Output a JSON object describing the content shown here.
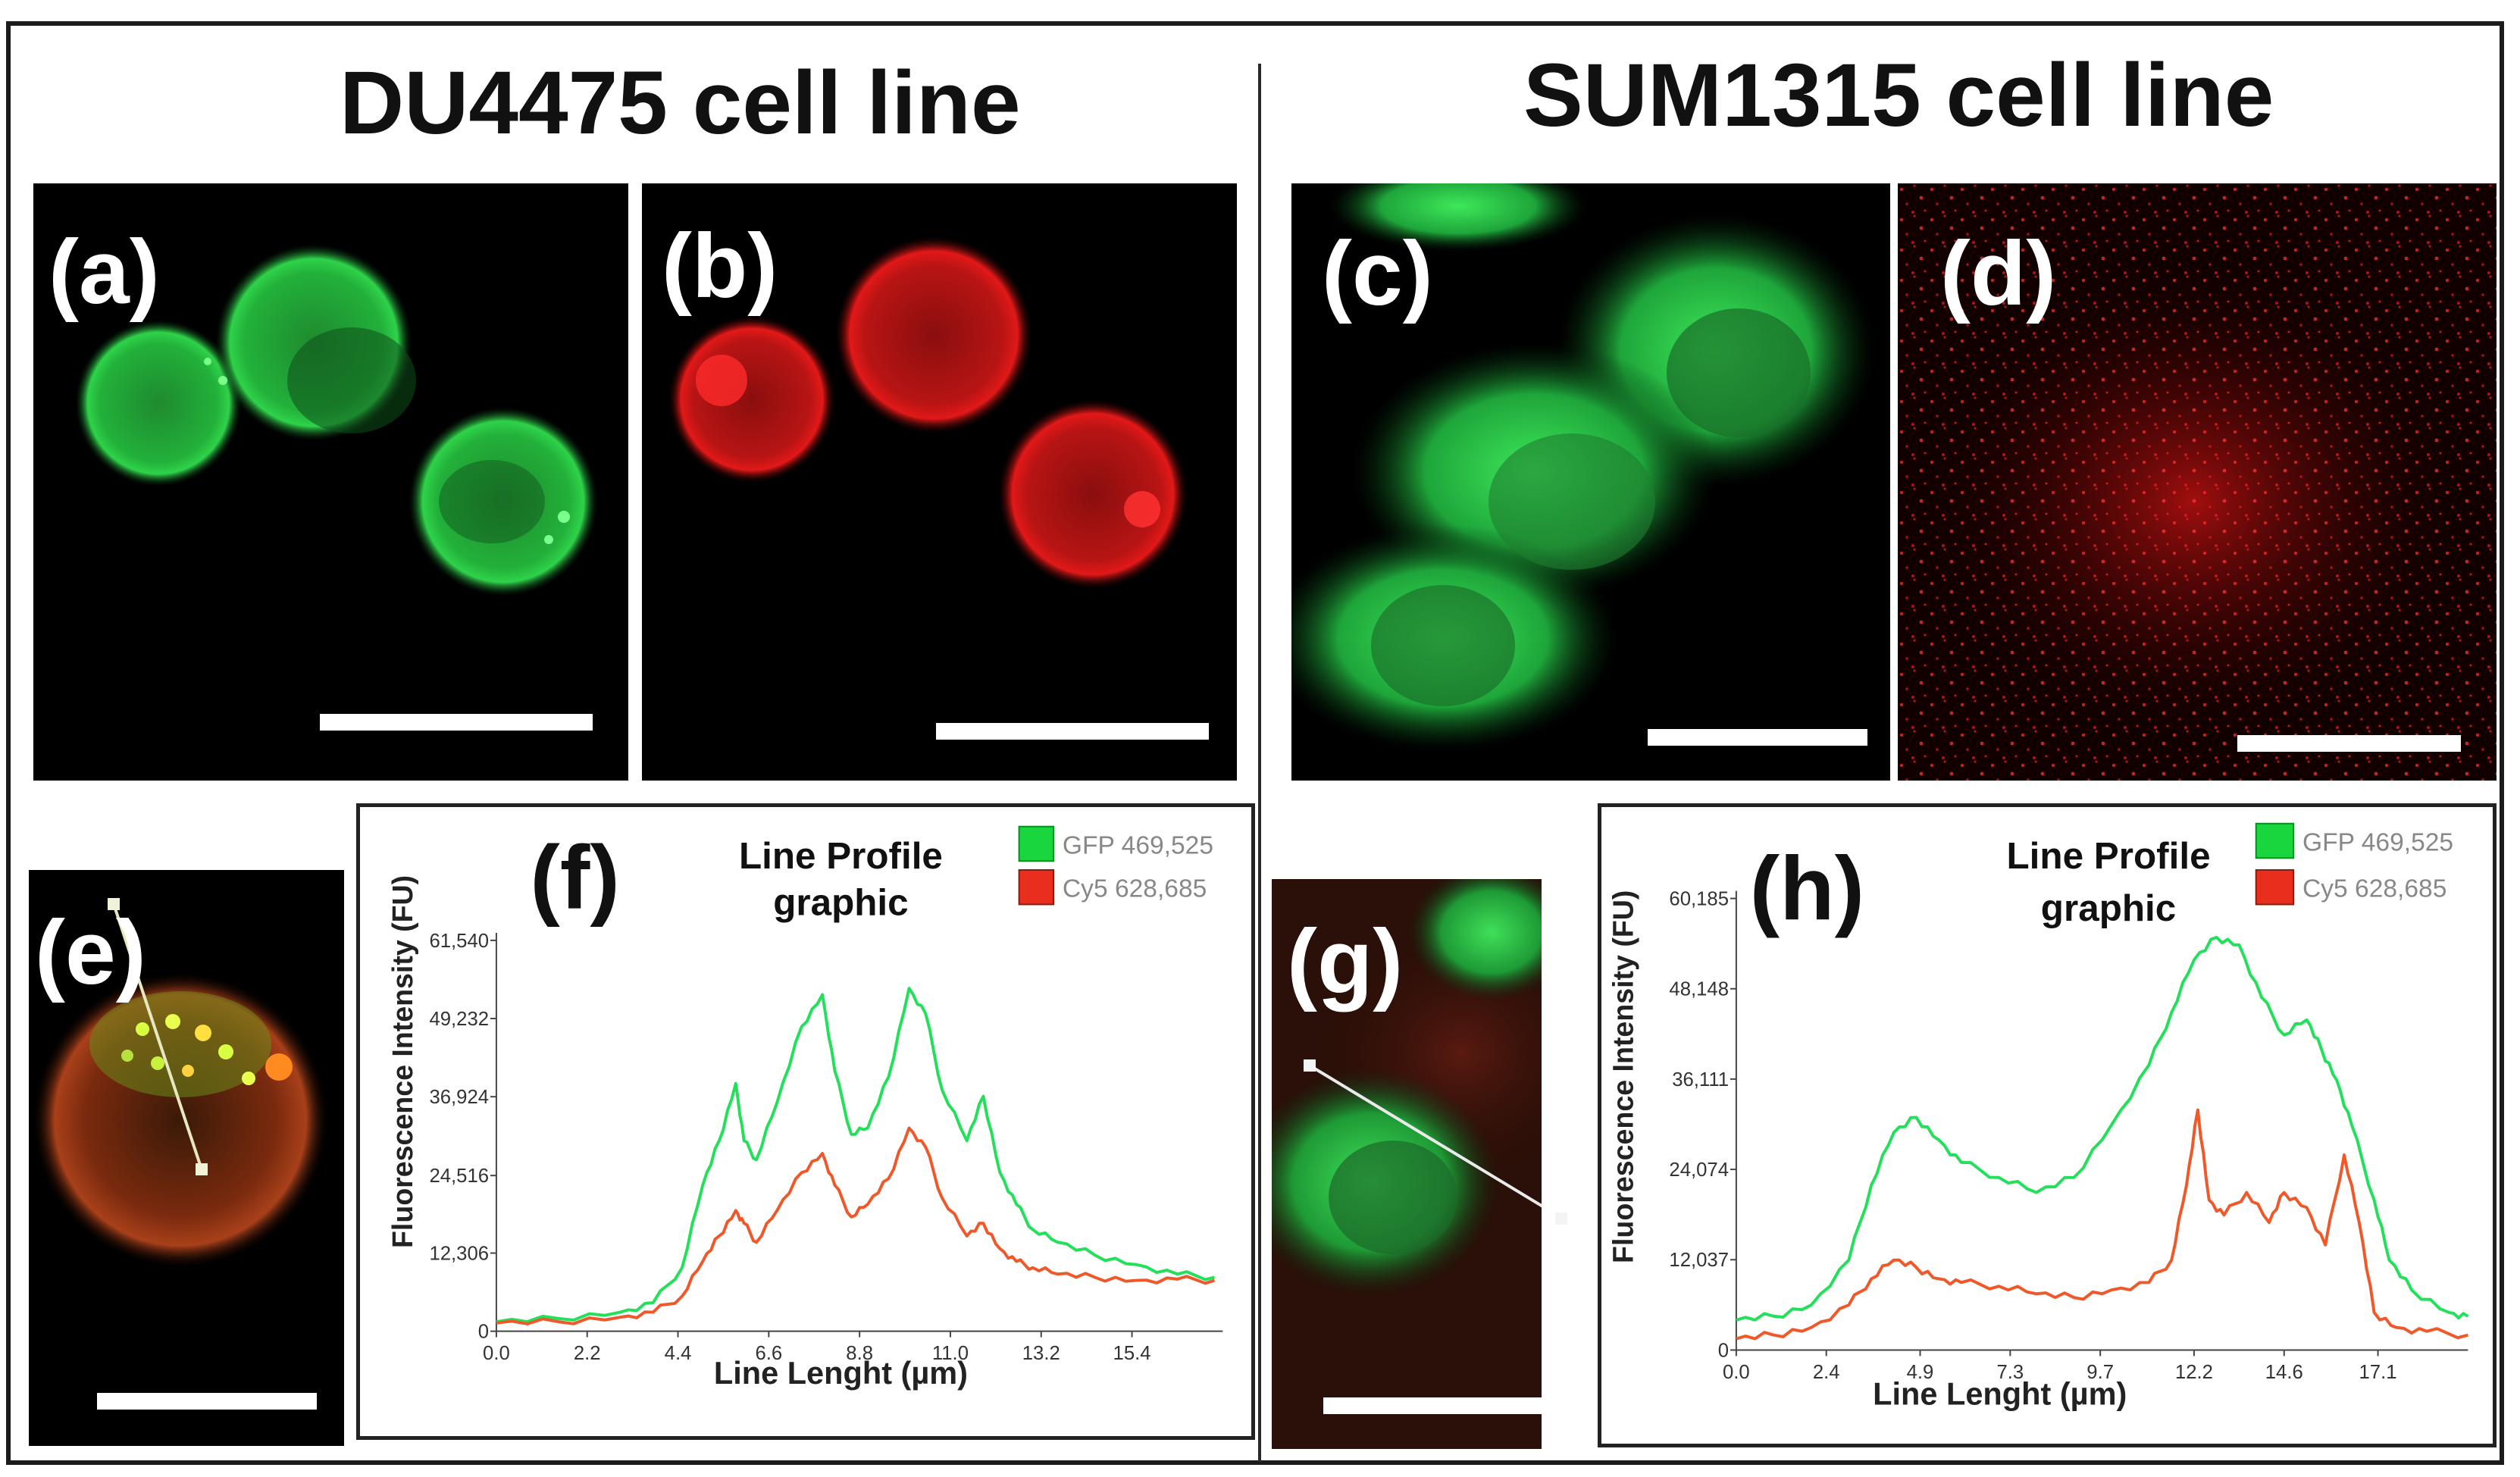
{
  "headings": {
    "left": "DU4475 cell line",
    "right": "SUM1315 cell line"
  },
  "panel_labels": {
    "a": "(a)",
    "b": "(b)",
    "c": "(c)",
    "d": "(d)",
    "e": "(e)",
    "f": "(f)",
    "g": "(g)",
    "h": "(h)"
  },
  "colors": {
    "gfp_line": "#22e05a",
    "cy5_line": "#f0582a",
    "gfp_swatch": "#19d63e",
    "cy5_swatch": "#e92e1e",
    "green_fluor": "#2fd24a",
    "red_fluor": "#e21818"
  },
  "chart_data": [
    {
      "id": "f",
      "type": "line",
      "title": "Line Profile graphic",
      "title_lines": [
        "Line Profile",
        "graphic"
      ],
      "xlabel": "Line Lenght (µm)",
      "ylabel": "Fluorescence Intensity (FU)",
      "xlim": [
        0,
        17.6
      ],
      "ylim": [
        0,
        61540
      ],
      "xticks": [
        "0.0",
        "2.2",
        "4.4",
        "6.6",
        "8.8",
        "11.0",
        "13.2",
        "15.4"
      ],
      "yticks": [
        "0",
        "12,306",
        "24,516",
        "36,924",
        "49,232",
        "61,540"
      ],
      "legend": [
        {
          "name": "GFP 469,525",
          "swatch": "gfp"
        },
        {
          "name": "Cy5 628,685",
          "swatch": "cy5"
        }
      ],
      "series": [
        {
          "name": "GFP 469,525",
          "color": "gfp",
          "x": [
            0,
            1.5,
            3.0,
            3.8,
            4.5,
            5.0,
            5.4,
            5.8,
            6.0,
            6.3,
            6.8,
            7.4,
            7.9,
            8.2,
            8.6,
            9.0,
            9.5,
            10.0,
            10.4,
            10.8,
            11.4,
            11.8,
            12.2,
            12.6,
            13.0,
            13.6,
            14.5,
            15.5,
            16.5,
            17.4
          ],
          "y": [
            1500,
            2000,
            3000,
            4500,
            10000,
            23000,
            30000,
            39000,
            30000,
            27000,
            36000,
            48000,
            53000,
            41000,
            31000,
            32000,
            40000,
            54000,
            50000,
            38000,
            30000,
            37000,
            25000,
            20000,
            16000,
            14000,
            12000,
            10500,
            9000,
            8500
          ]
        },
        {
          "name": "Cy5 628,685",
          "color": "cy5",
          "x": [
            0,
            1.5,
            3.0,
            3.8,
            4.5,
            5.0,
            5.4,
            5.8,
            6.0,
            6.3,
            6.8,
            7.4,
            7.9,
            8.2,
            8.6,
            9.0,
            9.5,
            10.0,
            10.4,
            10.8,
            11.4,
            11.8,
            12.2,
            12.6,
            13.0,
            13.6,
            14.5,
            15.5,
            16.5,
            17.4
          ],
          "y": [
            1300,
            1500,
            2200,
            3000,
            5500,
            11000,
            15000,
            19000,
            17000,
            14000,
            19000,
            25000,
            28000,
            23000,
            18000,
            20000,
            24000,
            32000,
            29000,
            21000,
            15000,
            17000,
            13000,
            11000,
            10000,
            9000,
            8500,
            8000,
            8200,
            8000
          ]
        }
      ]
    },
    {
      "id": "h",
      "type": "line",
      "title": "Line Profile graphic",
      "title_lines": [
        "Line Profile",
        "graphic"
      ],
      "xlabel": "Line Lenght (µm)",
      "ylabel": "Fluorescence Intensity (FU)",
      "xlim": [
        0,
        19.5
      ],
      "ylim": [
        0,
        60185
      ],
      "xticks": [
        "0.0",
        "2.4",
        "4.9",
        "7.3",
        "9.7",
        "12.2",
        "14.6",
        "17.1"
      ],
      "yticks": [
        "0",
        "12,037",
        "24,074",
        "36,111",
        "48,148",
        "60,185"
      ],
      "legend": [
        {
          "name": "GFP 469,525",
          "swatch": "gfp"
        },
        {
          "name": "Cy5 628,685",
          "swatch": "cy5"
        }
      ],
      "series": [
        {
          "name": "GFP 469,525",
          "color": "gfp",
          "x": [
            0,
            1.0,
            2.0,
            3.0,
            3.6,
            4.2,
            4.8,
            5.4,
            6.0,
            7.0,
            8.0,
            9.0,
            10.0,
            11.0,
            11.6,
            12.2,
            12.8,
            13.4,
            14.0,
            14.6,
            15.2,
            15.6,
            16.0,
            16.4,
            17.0,
            17.4,
            18.0,
            19.0,
            19.5
          ],
          "y": [
            4000,
            4500,
            6000,
            12000,
            22000,
            29000,
            31000,
            28000,
            25000,
            23000,
            21000,
            23000,
            30000,
            38000,
            45000,
            52000,
            55000,
            54000,
            47000,
            42000,
            44000,
            40000,
            36000,
            30000,
            20000,
            12000,
            8000,
            5000,
            4500
          ]
        },
        {
          "name": "Cy5 628,685",
          "color": "cy5",
          "x": [
            0,
            1.0,
            2.0,
            3.0,
            3.6,
            4.2,
            4.8,
            5.4,
            6.0,
            7.0,
            8.0,
            9.0,
            10.0,
            11.0,
            11.6,
            12.0,
            12.3,
            12.6,
            13.0,
            13.6,
            14.2,
            14.6,
            15.2,
            15.7,
            16.2,
            16.6,
            17.0,
            17.6,
            18.4,
            19.5
          ],
          "y": [
            1500,
            2000,
            3000,
            6000,
            9500,
            12000,
            11000,
            9500,
            9000,
            8500,
            7500,
            7000,
            8000,
            9000,
            12000,
            22000,
            32000,
            20000,
            18000,
            21000,
            17000,
            21000,
            19000,
            14000,
            26000,
            17000,
            5000,
            3000,
            2500,
            2000
          ]
        }
      ]
    }
  ]
}
